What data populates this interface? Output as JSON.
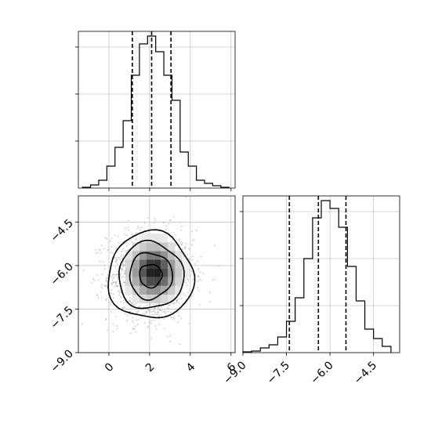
{
  "chart_data": [
    {
      "type": "histogram",
      "panel": "top-left",
      "xlim": [
        -1.5,
        6.2
      ],
      "ylim": [
        0,
        1.0
      ],
      "grid": true,
      "xtick_labels_shown": false,
      "ytick_labels_shown": false,
      "bins": [
        -1.3,
        -0.9,
        -0.5,
        -0.1,
        0.3,
        0.7,
        1.1,
        1.5,
        1.9,
        2.3,
        2.7,
        3.1,
        3.5,
        3.9,
        4.3,
        4.7,
        5.1,
        5.5,
        5.9
      ],
      "values": [
        0.005,
        0.02,
        0.05,
        0.14,
        0.26,
        0.43,
        0.72,
        0.92,
        0.97,
        0.87,
        0.72,
        0.56,
        0.23,
        0.14,
        0.05,
        0.03,
        0.015,
        0.005
      ],
      "quantiles": [
        1.15,
        2.1,
        3.05
      ]
    },
    {
      "type": "heatmap",
      "panel": "bottom-left",
      "xlim": [
        -1.5,
        6.2
      ],
      "ylim": [
        -9.0,
        -3.6
      ],
      "grid": true,
      "x_ticks": [
        0,
        2,
        4,
        6
      ],
      "x_tick_labels": [
        "0",
        "2",
        "4",
        "6"
      ],
      "y_ticks": [
        -9.0,
        -7.5,
        -6.0,
        -4.5
      ],
      "y_tick_labels": [
        "−9.0",
        "−7.5",
        "−6.0",
        "−4.5"
      ],
      "center": [
        2.05,
        -6.35
      ],
      "contour_levels": [
        {
          "rx": 2.1,
          "ry": 1.5,
          "dark": 0.12
        },
        {
          "rx": 1.6,
          "ry": 1.15,
          "dark": 0.25
        },
        {
          "rx": 1.05,
          "ry": 0.8,
          "dark": 0.45
        },
        {
          "rx": 0.55,
          "ry": 0.4,
          "dark": 0.75
        }
      ]
    },
    {
      "type": "histogram",
      "panel": "bottom-right",
      "xlim": [
        -9.0,
        -3.6
      ],
      "ylim": [
        0,
        1.0
      ],
      "grid": true,
      "x_ticks": [
        -9.0,
        -7.5,
        -6.0,
        -4.5
      ],
      "x_tick_labels": [
        "−9.0",
        "−7.5",
        "−6.0",
        "−4.5"
      ],
      "ytick_labels_shown": false,
      "bins": [
        -9.0,
        -8.7,
        -8.4,
        -8.1,
        -7.8,
        -7.5,
        -7.2,
        -6.9,
        -6.6,
        -6.3,
        -6.0,
        -5.7,
        -5.4,
        -5.1,
        -4.8,
        -4.5,
        -4.2,
        -3.9
      ],
      "values": [
        0.005,
        0.01,
        0.03,
        0.05,
        0.1,
        0.2,
        0.35,
        0.6,
        0.86,
        0.97,
        0.92,
        0.8,
        0.55,
        0.33,
        0.15,
        0.09,
        0.04
      ],
      "quantiles": [
        -7.4,
        -6.4,
        -5.45
      ]
    }
  ]
}
